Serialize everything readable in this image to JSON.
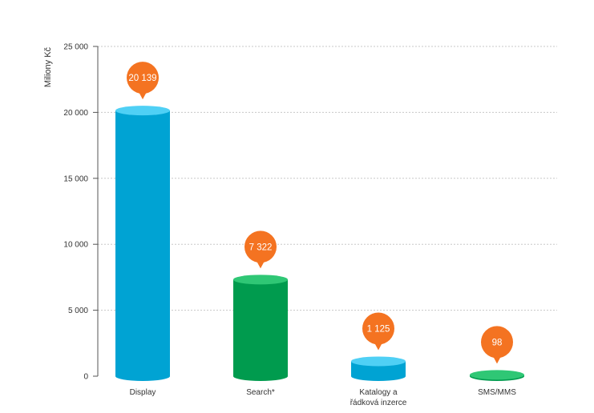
{
  "chart_data": {
    "type": "bar",
    "ylabel": "Miliony Kč",
    "xlabel": "",
    "ylim": [
      0,
      25000
    ],
    "yticks": [
      0,
      5000,
      10000,
      15000,
      20000,
      25000
    ],
    "ytick_labels": [
      "0",
      "5 000",
      "10 000",
      "15 000",
      "20 000",
      "25 000"
    ],
    "grid": true,
    "categories": [
      [
        "Display"
      ],
      [
        "Search*"
      ],
      [
        "Katalogy a",
        "řádková inzerce"
      ],
      [
        "SMS/MMS"
      ]
    ],
    "values": [
      20139,
      7322,
      1125,
      98
    ],
    "value_labels": [
      "20 139",
      "7 322",
      "1 125",
      "98"
    ],
    "bar_colors": [
      "#00a3d3",
      "#009b4e",
      "#00a3d3",
      "#009b4e"
    ],
    "bar_top_colors": [
      "#4fd0f5",
      "#2fc775",
      "#4fd0f5",
      "#2fc775"
    ],
    "label_bubble_color": "#f47321"
  }
}
